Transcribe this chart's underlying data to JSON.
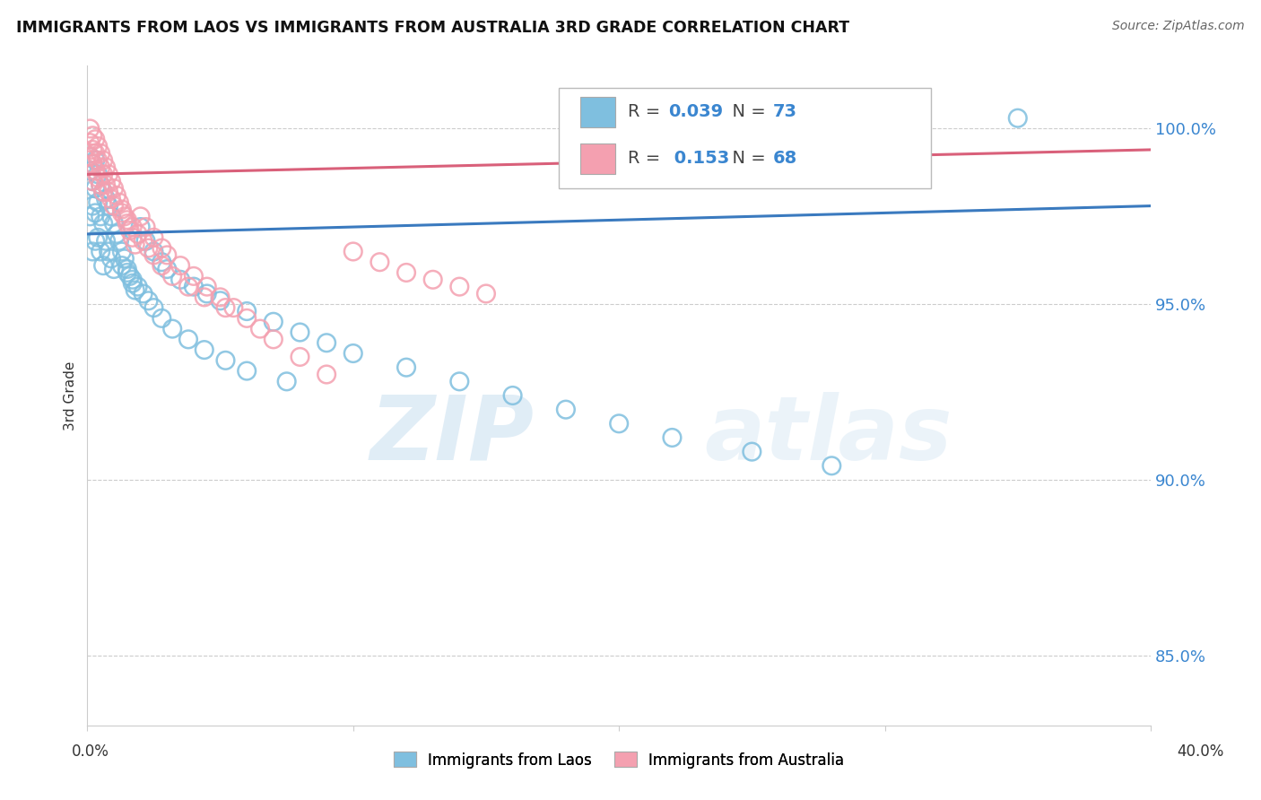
{
  "title": "IMMIGRANTS FROM LAOS VS IMMIGRANTS FROM AUSTRALIA 3RD GRADE CORRELATION CHART",
  "source": "Source: ZipAtlas.com",
  "ylabel": "3rd Grade",
  "yticks": [
    85.0,
    90.0,
    95.0,
    100.0
  ],
  "ytick_labels": [
    "85.0%",
    "90.0%",
    "95.0%",
    "100.0%"
  ],
  "xlim": [
    0.0,
    0.4
  ],
  "ylim": [
    83.0,
    101.8
  ],
  "legend_r_laos": "0.039",
  "legend_n_laos": "73",
  "legend_r_australia": "0.153",
  "legend_n_australia": "68",
  "laos_color": "#7fbfdf",
  "australia_color": "#f4a0b0",
  "regression_laos_color": "#3a7abf",
  "regression_australia_color": "#d9607a",
  "watermark_zip": "ZIP",
  "watermark_atlas": "atlas",
  "laos_points_x": [
    0.001,
    0.001,
    0.001,
    0.002,
    0.002,
    0.002,
    0.002,
    0.003,
    0.003,
    0.003,
    0.003,
    0.004,
    0.004,
    0.004,
    0.005,
    0.005,
    0.005,
    0.006,
    0.006,
    0.006,
    0.007,
    0.007,
    0.008,
    0.008,
    0.009,
    0.009,
    0.01,
    0.01,
    0.011,
    0.012,
    0.013,
    0.014,
    0.015,
    0.016,
    0.017,
    0.018,
    0.02,
    0.022,
    0.025,
    0.028,
    0.03,
    0.035,
    0.04,
    0.045,
    0.05,
    0.06,
    0.07,
    0.08,
    0.09,
    0.1,
    0.12,
    0.14,
    0.16,
    0.18,
    0.2,
    0.22,
    0.25,
    0.28,
    0.013,
    0.015,
    0.017,
    0.019,
    0.021,
    0.023,
    0.025,
    0.028,
    0.032,
    0.038,
    0.044,
    0.052,
    0.06,
    0.075,
    0.35
  ],
  "laos_points_y": [
    99.2,
    98.8,
    97.5,
    99.0,
    98.5,
    97.8,
    96.5,
    99.1,
    98.3,
    97.6,
    96.8,
    98.7,
    97.9,
    96.9,
    98.4,
    97.5,
    96.5,
    98.2,
    97.3,
    96.1,
    98.0,
    96.8,
    97.8,
    96.5,
    97.5,
    96.3,
    97.3,
    96.0,
    97.0,
    96.8,
    96.5,
    96.3,
    96.0,
    95.8,
    95.6,
    95.4,
    97.2,
    96.8,
    96.5,
    96.2,
    96.0,
    95.7,
    95.5,
    95.3,
    95.1,
    94.8,
    94.5,
    94.2,
    93.9,
    93.6,
    93.2,
    92.8,
    92.4,
    92.0,
    91.6,
    91.2,
    90.8,
    90.4,
    96.1,
    95.9,
    95.7,
    95.5,
    95.3,
    95.1,
    94.9,
    94.6,
    94.3,
    94.0,
    93.7,
    93.4,
    93.1,
    92.8,
    100.3
  ],
  "australia_points_x": [
    0.001,
    0.001,
    0.001,
    0.002,
    0.002,
    0.002,
    0.002,
    0.003,
    0.003,
    0.003,
    0.004,
    0.004,
    0.004,
    0.005,
    0.005,
    0.005,
    0.006,
    0.006,
    0.006,
    0.007,
    0.007,
    0.008,
    0.008,
    0.009,
    0.009,
    0.01,
    0.01,
    0.011,
    0.012,
    0.013,
    0.014,
    0.015,
    0.016,
    0.017,
    0.018,
    0.02,
    0.022,
    0.025,
    0.028,
    0.03,
    0.035,
    0.04,
    0.045,
    0.05,
    0.055,
    0.06,
    0.065,
    0.07,
    0.08,
    0.09,
    0.1,
    0.11,
    0.12,
    0.13,
    0.14,
    0.15,
    0.013,
    0.015,
    0.017,
    0.019,
    0.021,
    0.023,
    0.025,
    0.028,
    0.032,
    0.038,
    0.044,
    0.052
  ],
  "australia_points_y": [
    100.0,
    99.6,
    99.2,
    99.8,
    99.4,
    99.0,
    98.5,
    99.7,
    99.3,
    98.8,
    99.5,
    99.1,
    98.6,
    99.3,
    98.9,
    98.4,
    99.1,
    98.7,
    98.2,
    98.9,
    98.4,
    98.7,
    98.2,
    98.5,
    98.0,
    98.3,
    97.8,
    98.1,
    97.9,
    97.7,
    97.5,
    97.3,
    97.1,
    96.9,
    96.7,
    97.5,
    97.2,
    96.9,
    96.6,
    96.4,
    96.1,
    95.8,
    95.5,
    95.2,
    94.9,
    94.6,
    94.3,
    94.0,
    93.5,
    93.0,
    96.5,
    96.2,
    95.9,
    95.7,
    95.5,
    95.3,
    97.6,
    97.4,
    97.2,
    97.0,
    96.8,
    96.6,
    96.4,
    96.1,
    95.8,
    95.5,
    95.2,
    94.9
  ]
}
